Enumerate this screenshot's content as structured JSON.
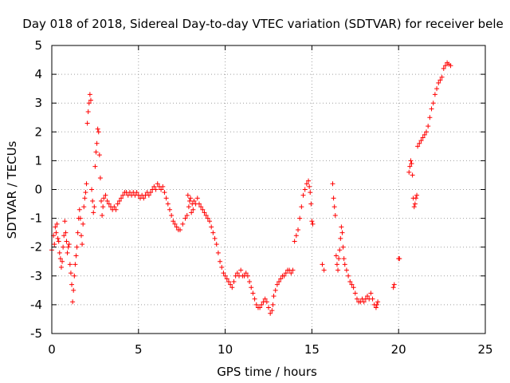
{
  "chart_data": {
    "type": "scatter",
    "title": "Day 018 of 2018, Sidereal Day-to-day VTEC variation (SDTVAR) for receiver bele",
    "xlabel": "GPS time / hours",
    "ylabel": "SDTVAR / TECUs",
    "xlim": [
      0,
      25
    ],
    "ylim": [
      -5,
      5
    ],
    "xticks": [
      "0",
      "5",
      "10",
      "15",
      "20",
      "25"
    ],
    "yticks": [
      "5",
      "4",
      "3",
      "2",
      "1",
      "0",
      "-1",
      "-2",
      "-3",
      "-4",
      "-5"
    ],
    "grid": true,
    "marker": "plus",
    "color": "#ff0000",
    "series": [
      {
        "name": "SDTVAR",
        "points": [
          [
            0.0,
            -2.1
          ],
          [
            0.1,
            -1.6
          ],
          [
            0.15,
            -1.9
          ],
          [
            0.2,
            -1.3
          ],
          [
            0.25,
            -1.5
          ],
          [
            0.3,
            -1.2
          ],
          [
            0.35,
            -1.7
          ],
          [
            0.4,
            -1.8
          ],
          [
            0.45,
            -2.2
          ],
          [
            0.5,
            -2.4
          ],
          [
            0.55,
            -2.7
          ],
          [
            0.6,
            -2.5
          ],
          [
            0.65,
            -2.0
          ],
          [
            0.7,
            -1.6
          ],
          [
            0.75,
            -1.1
          ],
          [
            0.8,
            -1.5
          ],
          [
            0.85,
            -1.8
          ],
          [
            0.9,
            -2.2
          ],
          [
            0.95,
            -2.0
          ],
          [
            1.0,
            -1.9
          ],
          [
            1.05,
            -2.6
          ],
          [
            1.1,
            -2.9
          ],
          [
            1.15,
            -3.3
          ],
          [
            1.2,
            -3.9
          ],
          [
            1.25,
            -3.5
          ],
          [
            1.3,
            -3.0
          ],
          [
            1.35,
            -2.6
          ],
          [
            1.4,
            -2.3
          ],
          [
            1.45,
            -2.0
          ],
          [
            1.5,
            -1.5
          ],
          [
            1.55,
            -1.0
          ],
          [
            1.6,
            -0.7
          ],
          [
            1.65,
            -1.0
          ],
          [
            1.7,
            -1.6
          ],
          [
            1.75,
            -1.9
          ],
          [
            1.8,
            -1.2
          ],
          [
            1.85,
            -0.6
          ],
          [
            1.9,
            -0.3
          ],
          [
            1.95,
            -0.1
          ],
          [
            2.0,
            0.2
          ],
          [
            2.05,
            2.3
          ],
          [
            2.1,
            2.7
          ],
          [
            2.15,
            3.0
          ],
          [
            2.2,
            3.3
          ],
          [
            2.25,
            3.1
          ],
          [
            2.3,
            0.0
          ],
          [
            2.35,
            -0.4
          ],
          [
            2.4,
            -0.8
          ],
          [
            2.45,
            -0.6
          ],
          [
            2.5,
            0.8
          ],
          [
            2.55,
            1.3
          ],
          [
            2.6,
            1.6
          ],
          [
            2.65,
            2.1
          ],
          [
            2.7,
            2.0
          ],
          [
            2.75,
            1.2
          ],
          [
            2.8,
            0.4
          ],
          [
            2.85,
            -0.4
          ],
          [
            2.9,
            -0.9
          ],
          [
            2.95,
            -0.6
          ],
          [
            3.0,
            -0.3
          ],
          [
            3.1,
            -0.2
          ],
          [
            3.2,
            -0.4
          ],
          [
            3.3,
            -0.5
          ],
          [
            3.4,
            -0.6
          ],
          [
            3.5,
            -0.7
          ],
          [
            3.6,
            -0.6
          ],
          [
            3.7,
            -0.7
          ],
          [
            3.8,
            -0.5
          ],
          [
            3.9,
            -0.4
          ],
          [
            4.0,
            -0.3
          ],
          [
            4.1,
            -0.2
          ],
          [
            4.2,
            -0.1
          ],
          [
            4.3,
            -0.1
          ],
          [
            4.4,
            -0.2
          ],
          [
            4.5,
            -0.1
          ],
          [
            4.6,
            -0.2
          ],
          [
            4.7,
            -0.1
          ],
          [
            4.8,
            -0.2
          ],
          [
            4.9,
            -0.1
          ],
          [
            5.0,
            -0.2
          ],
          [
            5.1,
            -0.3
          ],
          [
            5.2,
            -0.2
          ],
          [
            5.3,
            -0.3
          ],
          [
            5.4,
            -0.2
          ],
          [
            5.5,
            -0.1
          ],
          [
            5.6,
            -0.2
          ],
          [
            5.7,
            -0.1
          ],
          [
            5.8,
            0.0
          ],
          [
            5.9,
            0.1
          ],
          [
            6.0,
            0.0
          ],
          [
            6.1,
            0.2
          ],
          [
            6.2,
            0.1
          ],
          [
            6.3,
            0.0
          ],
          [
            6.4,
            0.1
          ],
          [
            6.5,
            -0.1
          ],
          [
            6.6,
            -0.3
          ],
          [
            6.7,
            -0.5
          ],
          [
            6.8,
            -0.7
          ],
          [
            6.9,
            -0.9
          ],
          [
            7.0,
            -1.1
          ],
          [
            7.1,
            -1.2
          ],
          [
            7.2,
            -1.3
          ],
          [
            7.3,
            -1.4
          ],
          [
            7.4,
            -1.4
          ],
          [
            7.55,
            -1.2
          ],
          [
            7.7,
            -1.0
          ],
          [
            7.8,
            -0.9
          ],
          [
            7.85,
            -0.2
          ],
          [
            7.9,
            -0.6
          ],
          [
            7.95,
            -0.4
          ],
          [
            8.0,
            -0.3
          ],
          [
            8.05,
            -0.8
          ],
          [
            8.1,
            -0.5
          ],
          [
            8.15,
            -0.7
          ],
          [
            8.2,
            -0.4
          ],
          [
            8.3,
            -0.5
          ],
          [
            8.4,
            -0.3
          ],
          [
            8.5,
            -0.5
          ],
          [
            8.6,
            -0.6
          ],
          [
            8.7,
            -0.7
          ],
          [
            8.8,
            -0.8
          ],
          [
            8.9,
            -0.9
          ],
          [
            9.0,
            -1.0
          ],
          [
            9.1,
            -1.1
          ],
          [
            9.2,
            -1.3
          ],
          [
            9.3,
            -1.5
          ],
          [
            9.4,
            -1.7
          ],
          [
            9.5,
            -1.9
          ],
          [
            9.6,
            -2.2
          ],
          [
            9.7,
            -2.5
          ],
          [
            9.8,
            -2.7
          ],
          [
            9.9,
            -2.9
          ],
          [
            10.0,
            -3.0
          ],
          [
            10.1,
            -3.1
          ],
          [
            10.2,
            -3.2
          ],
          [
            10.3,
            -3.3
          ],
          [
            10.4,
            -3.4
          ],
          [
            10.5,
            -3.2
          ],
          [
            10.6,
            -3.0
          ],
          [
            10.7,
            -2.9
          ],
          [
            10.8,
            -3.0
          ],
          [
            10.9,
            -2.8
          ],
          [
            11.0,
            -3.0
          ],
          [
            11.1,
            -3.0
          ],
          [
            11.2,
            -2.9
          ],
          [
            11.3,
            -3.0
          ],
          [
            11.4,
            -3.2
          ],
          [
            11.5,
            -3.4
          ],
          [
            11.6,
            -3.6
          ],
          [
            11.7,
            -3.8
          ],
          [
            11.8,
            -4.0
          ],
          [
            11.9,
            -4.1
          ],
          [
            12.0,
            -4.1
          ],
          [
            12.1,
            -4.0
          ],
          [
            12.2,
            -3.9
          ],
          [
            12.3,
            -3.8
          ],
          [
            12.4,
            -3.9
          ],
          [
            12.5,
            -4.1
          ],
          [
            12.6,
            -4.3
          ],
          [
            12.7,
            -4.2
          ],
          [
            12.75,
            -4.0
          ],
          [
            12.8,
            -3.7
          ],
          [
            12.9,
            -3.5
          ],
          [
            13.0,
            -3.3
          ],
          [
            13.1,
            -3.2
          ],
          [
            13.2,
            -3.1
          ],
          [
            13.3,
            -3.0
          ],
          [
            13.4,
            -3.0
          ],
          [
            13.5,
            -2.9
          ],
          [
            13.6,
            -2.8
          ],
          [
            13.7,
            -2.8
          ],
          [
            13.8,
            -2.9
          ],
          [
            13.9,
            -2.8
          ],
          [
            14.0,
            -1.8
          ],
          [
            14.1,
            -1.6
          ],
          [
            14.2,
            -1.4
          ],
          [
            14.3,
            -1.0
          ],
          [
            14.4,
            -0.6
          ],
          [
            14.5,
            -0.2
          ],
          [
            14.6,
            0.0
          ],
          [
            14.7,
            0.2
          ],
          [
            14.8,
            0.3
          ],
          [
            14.85,
            0.1
          ],
          [
            14.9,
            -0.1
          ],
          [
            14.95,
            -0.5
          ],
          [
            15.0,
            -1.1
          ],
          [
            15.05,
            -1.2
          ],
          [
            15.6,
            -2.6
          ],
          [
            15.7,
            -2.8
          ],
          [
            16.2,
            0.2
          ],
          [
            16.25,
            -0.3
          ],
          [
            16.3,
            -0.6
          ],
          [
            16.35,
            -0.9
          ],
          [
            16.4,
            -2.3
          ],
          [
            16.45,
            -2.6
          ],
          [
            16.5,
            -2.8
          ],
          [
            16.55,
            -2.4
          ],
          [
            16.6,
            -2.1
          ],
          [
            16.65,
            -1.7
          ],
          [
            16.7,
            -1.3
          ],
          [
            16.75,
            -1.5
          ],
          [
            16.8,
            -2.0
          ],
          [
            16.85,
            -2.4
          ],
          [
            16.9,
            -2.6
          ],
          [
            17.0,
            -2.8
          ],
          [
            17.1,
            -3.0
          ],
          [
            17.2,
            -3.2
          ],
          [
            17.3,
            -3.3
          ],
          [
            17.4,
            -3.4
          ],
          [
            17.5,
            -3.6
          ],
          [
            17.6,
            -3.8
          ],
          [
            17.7,
            -3.9
          ],
          [
            17.8,
            -3.9
          ],
          [
            17.9,
            -3.8
          ],
          [
            18.0,
            -3.9
          ],
          [
            18.1,
            -3.8
          ],
          [
            18.2,
            -3.7
          ],
          [
            18.3,
            -3.8
          ],
          [
            18.4,
            -3.6
          ],
          [
            18.5,
            -3.8
          ],
          [
            18.6,
            -4.0
          ],
          [
            18.7,
            -4.1
          ],
          [
            18.75,
            -4.0
          ],
          [
            18.8,
            -3.9
          ],
          [
            19.7,
            -3.4
          ],
          [
            19.75,
            -3.3
          ],
          [
            20.0,
            -2.4
          ],
          [
            20.05,
            -2.4
          ],
          [
            20.6,
            0.6
          ],
          [
            20.65,
            0.8
          ],
          [
            20.7,
            1.0
          ],
          [
            20.75,
            0.9
          ],
          [
            20.8,
            0.5
          ],
          [
            20.85,
            -0.3
          ],
          [
            20.9,
            -0.6
          ],
          [
            20.95,
            -0.5
          ],
          [
            21.0,
            -0.3
          ],
          [
            21.05,
            -0.2
          ],
          [
            21.1,
            1.5
          ],
          [
            21.2,
            1.6
          ],
          [
            21.3,
            1.7
          ],
          [
            21.4,
            1.8
          ],
          [
            21.5,
            1.9
          ],
          [
            21.6,
            2.0
          ],
          [
            21.7,
            2.2
          ],
          [
            21.8,
            2.5
          ],
          [
            21.9,
            2.8
          ],
          [
            22.0,
            3.0
          ],
          [
            22.1,
            3.3
          ],
          [
            22.2,
            3.5
          ],
          [
            22.3,
            3.7
          ],
          [
            22.4,
            3.8
          ],
          [
            22.5,
            3.9
          ],
          [
            22.6,
            4.2
          ],
          [
            22.7,
            4.3
          ],
          [
            22.8,
            4.4
          ],
          [
            22.9,
            4.35
          ],
          [
            23.0,
            4.3
          ]
        ]
      }
    ]
  }
}
